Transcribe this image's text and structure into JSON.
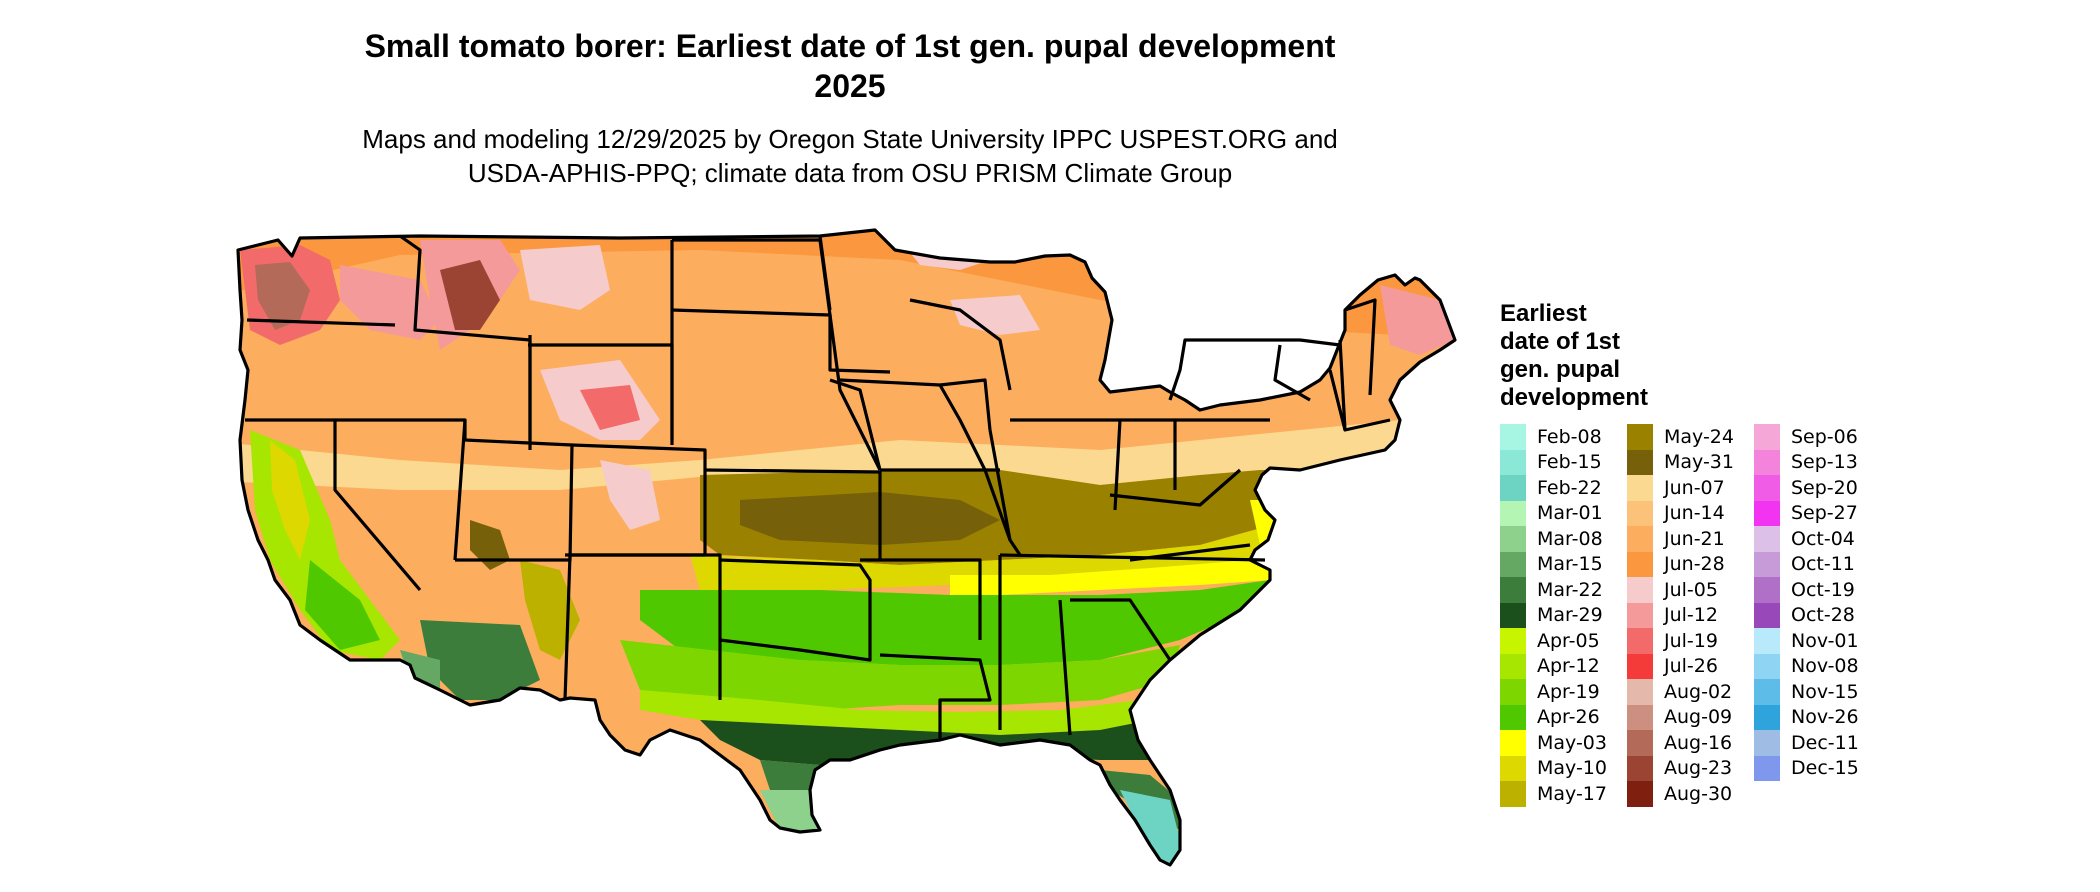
{
  "title_lines": [
    "Small tomato borer: Earliest date of 1st gen. pupal development",
    "2025"
  ],
  "subtitle_lines": [
    "Maps and modeling 12/29/2025 by Oregon State University IPPC USPEST.ORG and",
    "USDA-APHIS-PPQ; climate data from OSU PRISM Climate Group"
  ],
  "legend": {
    "title_lines": [
      "Earliest",
      "date of 1st",
      "gen. pupal",
      "development"
    ],
    "columns": [
      [
        {
          "label": "Feb-08",
          "color": "#a7f5e3"
        },
        {
          "label": "Feb-15",
          "color": "#8be8d6"
        },
        {
          "label": "Feb-22",
          "color": "#6dd4c4"
        },
        {
          "label": "Mar-01",
          "color": "#b4f5b4"
        },
        {
          "label": "Mar-08",
          "color": "#8dd18d"
        },
        {
          "label": "Mar-15",
          "color": "#64a864"
        },
        {
          "label": "Mar-22",
          "color": "#3c7d3c"
        },
        {
          "label": "Mar-29",
          "color": "#1b4f1b"
        },
        {
          "label": "Apr-05",
          "color": "#c7f500"
        },
        {
          "label": "Apr-12",
          "color": "#a6e600"
        },
        {
          "label": "Apr-19",
          "color": "#7ed600"
        },
        {
          "label": "Apr-26",
          "color": "#50c800"
        },
        {
          "label": "May-03",
          "color": "#ffff00"
        },
        {
          "label": "May-10",
          "color": "#dcd800"
        },
        {
          "label": "May-17",
          "color": "#bdb100"
        }
      ],
      [
        {
          "label": "May-24",
          "color": "#9a8200"
        },
        {
          "label": "May-31",
          "color": "#76600a"
        },
        {
          "label": "Jun-07",
          "color": "#fcd991"
        },
        {
          "label": "Jun-14",
          "color": "#fdc27a"
        },
        {
          "label": "Jun-21",
          "color": "#fcae5e"
        },
        {
          "label": "Jun-28",
          "color": "#fb983f"
        },
        {
          "label": "Jul-05",
          "color": "#f6cbcb"
        },
        {
          "label": "Jul-12",
          "color": "#f59a9a"
        },
        {
          "label": "Jul-19",
          "color": "#f26a6a"
        },
        {
          "label": "Jul-26",
          "color": "#f53a3a"
        },
        {
          "label": "Aug-02",
          "color": "#e4b8aa"
        },
        {
          "label": "Aug-09",
          "color": "#cd8f80"
        },
        {
          "label": "Aug-16",
          "color": "#b36a59"
        },
        {
          "label": "Aug-23",
          "color": "#9b4434"
        },
        {
          "label": "Aug-30",
          "color": "#7f1f10"
        }
      ],
      [
        {
          "label": "Sep-06",
          "color": "#f5a8d8"
        },
        {
          "label": "Sep-13",
          "color": "#f483dc"
        },
        {
          "label": "Sep-20",
          "color": "#f05ce6"
        },
        {
          "label": "Sep-27",
          "color": "#f233f2"
        },
        {
          "label": "Oct-04",
          "color": "#dcc0e8"
        },
        {
          "label": "Oct-11",
          "color": "#c79ad8"
        },
        {
          "label": "Oct-19",
          "color": "#b170c8"
        },
        {
          "label": "Oct-28",
          "color": "#9848b8"
        },
        {
          "label": "Nov-01",
          "color": "#b9eafc"
        },
        {
          "label": "Nov-08",
          "color": "#8fd4f3"
        },
        {
          "label": "Nov-15",
          "color": "#5ebde8"
        },
        {
          "label": "Nov-26",
          "color": "#2fa3dc"
        },
        {
          "label": "Dec-11",
          "color": "#9fbde4"
        },
        {
          "label": "Dec-15",
          "color": "#7f97ec"
        }
      ]
    ]
  }
}
